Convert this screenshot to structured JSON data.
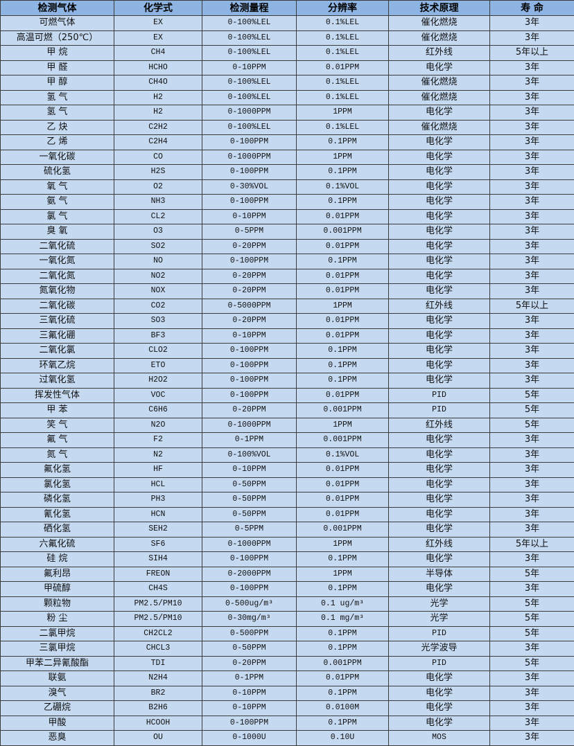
{
  "table": {
    "headers": [
      "检测气体",
      "化学式",
      "检测量程",
      "分辨率",
      "技术原理",
      "寿 命"
    ],
    "rows": [
      [
        "可燃气体",
        "EX",
        "0-100%LEL",
        "0.1%LEL",
        "催化燃烧",
        "3年"
      ],
      [
        "高温可燃（250℃）",
        "EX",
        "0-100%LEL",
        "0.1%LEL",
        "催化燃烧",
        "3年"
      ],
      [
        "甲 烷",
        "CH4",
        "0-100%LEL",
        "0.1%LEL",
        "红外线",
        "5年以上"
      ],
      [
        "甲 醛",
        "HCHO",
        "0-10PPM",
        "0.01PPM",
        "电化学",
        "3年"
      ],
      [
        "甲 醇",
        "CH4O",
        "0-100%LEL",
        "0.1%LEL",
        "催化燃烧",
        "3年"
      ],
      [
        "氢 气",
        "H2",
        "0-100%LEL",
        "0.1%LEL",
        "催化燃烧",
        "3年"
      ],
      [
        "氢 气",
        "H2",
        "0-1000PPM",
        "1PPM",
        "电化学",
        "3年"
      ],
      [
        "乙 炔",
        "C2H2",
        "0-100%LEL",
        "0.1%LEL",
        "催化燃烧",
        "3年"
      ],
      [
        "乙 烯",
        "C2H4",
        "0-100PPM",
        "0.1PPM",
        "电化学",
        "3年"
      ],
      [
        "一氧化碳",
        "CO",
        "0-1000PPM",
        "1PPM",
        "电化学",
        "3年"
      ],
      [
        "硫化氢",
        "H2S",
        "0-100PPM",
        "0.1PPM",
        "电化学",
        "3年"
      ],
      [
        "氧 气",
        "O2",
        "0-30%VOL",
        "0.1%VOL",
        "电化学",
        "3年"
      ],
      [
        "氨 气",
        "NH3",
        "0-100PPM",
        "0.1PPM",
        "电化学",
        "3年"
      ],
      [
        "氯 气",
        "CL2",
        "0-10PPM",
        "0.01PPM",
        "电化学",
        "3年"
      ],
      [
        "臭 氧",
        "O3",
        "0-5PPM",
        "0.001PPM",
        "电化学",
        "3年"
      ],
      [
        "二氧化硫",
        "SO2",
        "0-20PPM",
        "0.01PPM",
        "电化学",
        "3年"
      ],
      [
        "一氧化氮",
        "NO",
        "0-100PPM",
        "0.1PPM",
        "电化学",
        "3年"
      ],
      [
        "二氧化氮",
        "NO2",
        "0-20PPM",
        "0.01PPM",
        "电化学",
        "3年"
      ],
      [
        "氮氧化物",
        "NOX",
        "0-20PPM",
        "0.01PPM",
        "电化学",
        "3年"
      ],
      [
        "二氧化碳",
        "CO2",
        "0-5000PPM",
        "1PPM",
        "红外线",
        "5年以上"
      ],
      [
        "三氧化硫",
        "SO3",
        "0-20PPM",
        "0.01PPM",
        "电化学",
        "3年"
      ],
      [
        "三氟化硼",
        "BF3",
        "0-10PPM",
        "0.01PPM",
        "电化学",
        "3年"
      ],
      [
        "二氧化氯",
        "CLO2",
        "0-100PPM",
        "0.1PPM",
        "电化学",
        "3年"
      ],
      [
        "环氧乙烷",
        "ETO",
        "0-100PPM",
        "0.1PPM",
        "电化学",
        "3年"
      ],
      [
        "过氧化氢",
        "H2O2",
        "0-100PPM",
        "0.1PPM",
        "电化学",
        "3年"
      ],
      [
        "挥发性气体",
        "VOC",
        "0-100PPM",
        "0.01PPM",
        "PID",
        "5年"
      ],
      [
        "甲 苯",
        "C6H6",
        "0-20PPM",
        "0.001PPM",
        "PID",
        "5年"
      ],
      [
        "笑 气",
        "N2O",
        "0-1000PPM",
        "1PPM",
        "红外线",
        "5年"
      ],
      [
        "氟 气",
        "F2",
        "0-1PPM",
        "0.001PPM",
        "电化学",
        "3年"
      ],
      [
        "氮 气",
        "N2",
        "0-100%VOL",
        "0.1%VOL",
        "电化学",
        "3年"
      ],
      [
        "氟化氢",
        "HF",
        "0-10PPM",
        "0.01PPM",
        "电化学",
        "3年"
      ],
      [
        "氯化氢",
        "HCL",
        "0-50PPM",
        "0.01PPM",
        "电化学",
        "3年"
      ],
      [
        "磷化氢",
        "PH3",
        "0-50PPM",
        "0.01PPM",
        "电化学",
        "3年"
      ],
      [
        "氰化氢",
        "HCN",
        "0-50PPM",
        "0.01PPM",
        "电化学",
        "3年"
      ],
      [
        "硒化氢",
        "SEH2",
        "0-5PPM",
        "0.001PPM",
        "电化学",
        "3年"
      ],
      [
        "六氟化硫",
        "SF6",
        "0-1000PPM",
        "1PPM",
        "红外线",
        "5年以上"
      ],
      [
        "硅 烷",
        "SIH4",
        "0-100PPM",
        "0.1PPM",
        "电化学",
        "3年"
      ],
      [
        "氟利昂",
        "FREON",
        "0-2000PPM",
        "1PPM",
        "半导体",
        "5年"
      ],
      [
        "甲硫醇",
        "CH4S",
        "0-100PPM",
        "0.1PPM",
        "电化学",
        "3年"
      ],
      [
        "颗粒物",
        "PM2.5/PM10",
        "0-500ug/m³",
        "0.1 ug/m³",
        "光学",
        "5年"
      ],
      [
        "粉 尘",
        "PM2.5/PM10",
        "0-30mg/m³",
        "0.1 mg/m³",
        "光学",
        "5年"
      ],
      [
        "二氯甲烷",
        "CH2CL2",
        "0-500PPM",
        "0.1PPM",
        "PID",
        "5年"
      ],
      [
        "三氯甲烷",
        "CHCL3",
        "0-50PPM",
        "0.1PPM",
        "光学波导",
        "3年"
      ],
      [
        "甲苯二异氰酸酯",
        "TDI",
        "0-20PPM",
        "0.001PPM",
        "PID",
        "5年"
      ],
      [
        "联氨",
        "N2H4",
        "0-1PPM",
        "0.01PPM",
        "电化学",
        "3年"
      ],
      [
        "溴气",
        "BR2",
        "0-10PPM",
        "0.1PPM",
        "电化学",
        "3年"
      ],
      [
        "乙硼烷",
        "B2H6",
        "0-10PPM",
        "0.0100M",
        "电化学",
        "3年"
      ],
      [
        "甲酸",
        "HCOOH",
        "0-100PPM",
        "0.1PPM",
        "电化学",
        "3年"
      ],
      [
        "恶臭",
        "OU",
        "0-1000U",
        "0.10U",
        "MOS",
        "3年"
      ]
    ]
  }
}
